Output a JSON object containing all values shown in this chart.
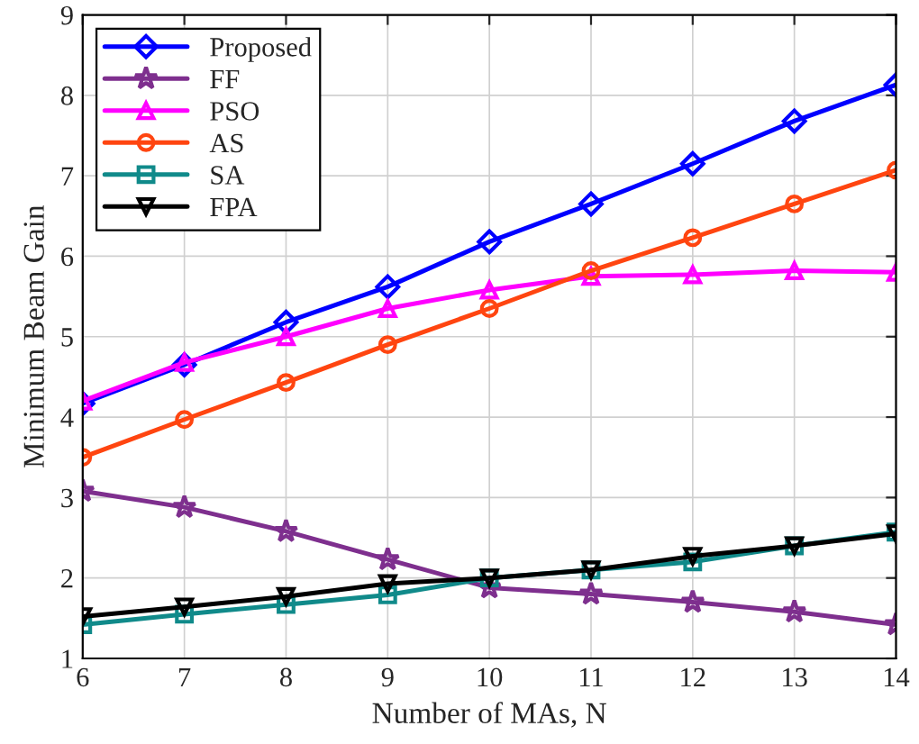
{
  "chart_data": {
    "type": "line",
    "xlabel": "Number of MAs, N",
    "ylabel": "Minimum Beam Gain",
    "x": [
      6,
      7,
      8,
      9,
      10,
      11,
      12,
      13,
      14
    ],
    "xlim": [
      6,
      14
    ],
    "xticks": [
      6,
      7,
      8,
      9,
      10,
      11,
      12,
      13,
      14
    ],
    "ylim": [
      1,
      9
    ],
    "yticks": [
      1,
      2,
      3,
      4,
      5,
      6,
      7,
      8,
      9
    ],
    "grid": true,
    "legend": "top left",
    "line_style": "solid",
    "series": [
      {
        "name": "Proposed",
        "color": "#0000ff",
        "marker": "diamond",
        "values": [
          4.17,
          4.65,
          5.18,
          5.62,
          6.18,
          6.65,
          7.15,
          7.68,
          8.13
        ]
      },
      {
        "name": "FF",
        "color": "#7e2f8e",
        "marker": "star",
        "values": [
          3.08,
          2.88,
          2.58,
          2.23,
          1.88,
          1.8,
          1.7,
          1.58,
          1.42
        ]
      },
      {
        "name": "PSO",
        "color": "#ff00ff",
        "marker": "triangle",
        "values": [
          4.2,
          4.68,
          5.0,
          5.35,
          5.58,
          5.75,
          5.77,
          5.82,
          5.8
        ]
      },
      {
        "name": "AS",
        "color": "#ff4510",
        "marker": "circle",
        "values": [
          3.5,
          3.97,
          4.43,
          4.9,
          5.35,
          5.82,
          6.23,
          6.65,
          7.07
        ]
      },
      {
        "name": "SA",
        "color": "#108a8a",
        "marker": "square",
        "values": [
          1.42,
          1.55,
          1.67,
          1.79,
          2.0,
          2.1,
          2.2,
          2.4,
          2.57
        ]
      },
      {
        "name": "FPA",
        "color": "#000000",
        "marker": "triangle_down",
        "values": [
          1.52,
          1.64,
          1.77,
          1.93,
          2.0,
          2.1,
          2.27,
          2.4,
          2.55
        ]
      }
    ]
  }
}
